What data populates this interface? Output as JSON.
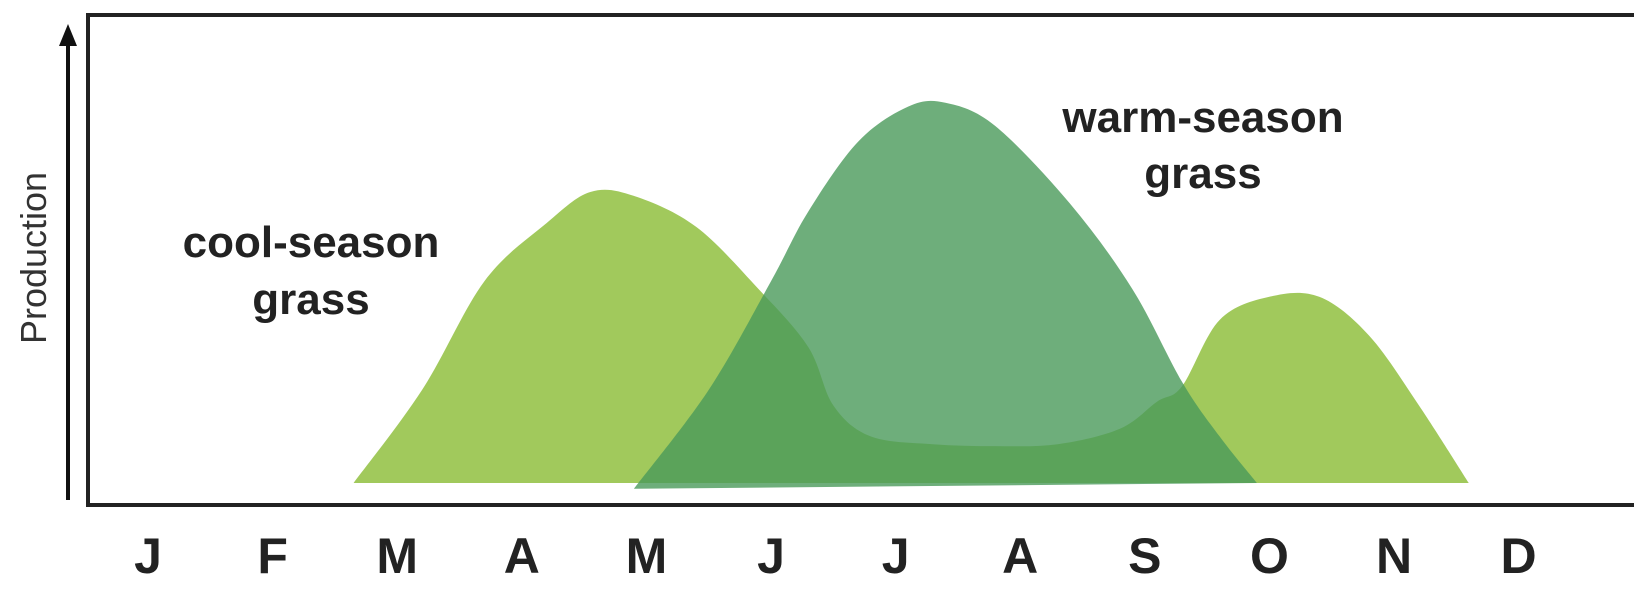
{
  "chart_data": {
    "type": "area",
    "title": "",
    "xlabel": "",
    "ylabel": "Production",
    "categories": [
      "J",
      "F",
      "M",
      "A",
      "M",
      "J",
      "J",
      "A",
      "S",
      "O",
      "N",
      "D"
    ],
    "ylim": [
      0,
      100
    ],
    "grid": false,
    "series": [
      {
        "name": "cool-season grass",
        "label_lines": [
          "cool-season",
          "grass"
        ],
        "color": "#9cc653",
        "points": [
          [
            1.65,
            0
          ],
          [
            2.2,
            24
          ],
          [
            2.7,
            52
          ],
          [
            3.2,
            67
          ],
          [
            3.55,
            75
          ],
          [
            3.9,
            74
          ],
          [
            4.4,
            66
          ],
          [
            4.9,
            50
          ],
          [
            5.3,
            35
          ],
          [
            5.5,
            20
          ],
          [
            5.8,
            12
          ],
          [
            6.3,
            10
          ],
          [
            6.8,
            9.5
          ],
          [
            7.3,
            10
          ],
          [
            7.8,
            14
          ],
          [
            8.1,
            21
          ],
          [
            8.3,
            25
          ],
          [
            8.6,
            42
          ],
          [
            9.0,
            48
          ],
          [
            9.4,
            48
          ],
          [
            9.8,
            38
          ],
          [
            10.2,
            20
          ],
          [
            10.6,
            0
          ]
        ]
      },
      {
        "name": "warm-season grass",
        "label_lines": [
          "warm-season",
          "grass"
        ],
        "color": "#4a9a5a",
        "points": [
          [
            3.9,
            -1.5
          ],
          [
            4.5,
            24
          ],
          [
            5.0,
            52
          ],
          [
            5.3,
            70
          ],
          [
            5.7,
            88
          ],
          [
            6.1,
            97
          ],
          [
            6.4,
            98
          ],
          [
            6.8,
            92
          ],
          [
            7.4,
            72
          ],
          [
            7.9,
            50
          ],
          [
            8.3,
            26
          ],
          [
            8.6,
            12
          ],
          [
            8.9,
            0
          ]
        ]
      }
    ]
  }
}
